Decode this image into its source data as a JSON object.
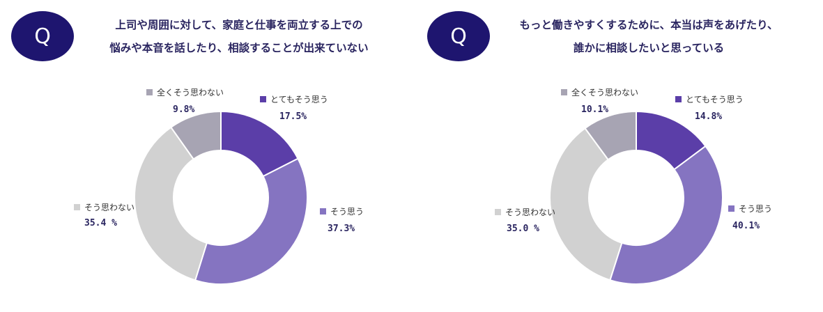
{
  "colors": {
    "badge": "#1e156f",
    "strongly_agree": "#5b3ea8",
    "agree": "#8574c1",
    "disagree": "#d1d1d1",
    "strongly_disagree": "#a7a4b3"
  },
  "chart_data": [
    {
      "type": "pie",
      "badge": "Q",
      "title_lines": [
        "上司や周囲に対して、家庭と仕事を両立する上での",
        "悩みや本音を話したり、相談することが出来ていない"
      ],
      "slices": [
        {
          "label": "とてもそう思う",
          "value": 17.5,
          "value_label": "17.5%",
          "color": "#5b3ea8"
        },
        {
          "label": "そう思う",
          "value": 37.3,
          "value_label": "37.3%",
          "color": "#8574c1"
        },
        {
          "label": "そう思わない",
          "value": 35.4,
          "value_label": "35.4 %",
          "color": "#d1d1d1"
        },
        {
          "label": "全くそう思わない",
          "value": 9.8,
          "value_label": "9.8%",
          "color": "#a7a4b3"
        }
      ]
    },
    {
      "type": "pie",
      "badge": "Q",
      "title_lines": [
        "もっと働きやすくするために、本当は声をあげたり、",
        "誰かに相談したいと思っている"
      ],
      "slices": [
        {
          "label": "とてもそう思う",
          "value": 14.8,
          "value_label": "14.8%",
          "color": "#5b3ea8"
        },
        {
          "label": "そう思う",
          "value": 40.1,
          "value_label": "40.1%",
          "color": "#8574c1"
        },
        {
          "label": "そう思わない",
          "value": 35.0,
          "value_label": "35.0 %",
          "color": "#d1d1d1"
        },
        {
          "label": "全くそう思わない",
          "value": 10.1,
          "value_label": "10.1%",
          "color": "#a7a4b3"
        }
      ]
    }
  ]
}
